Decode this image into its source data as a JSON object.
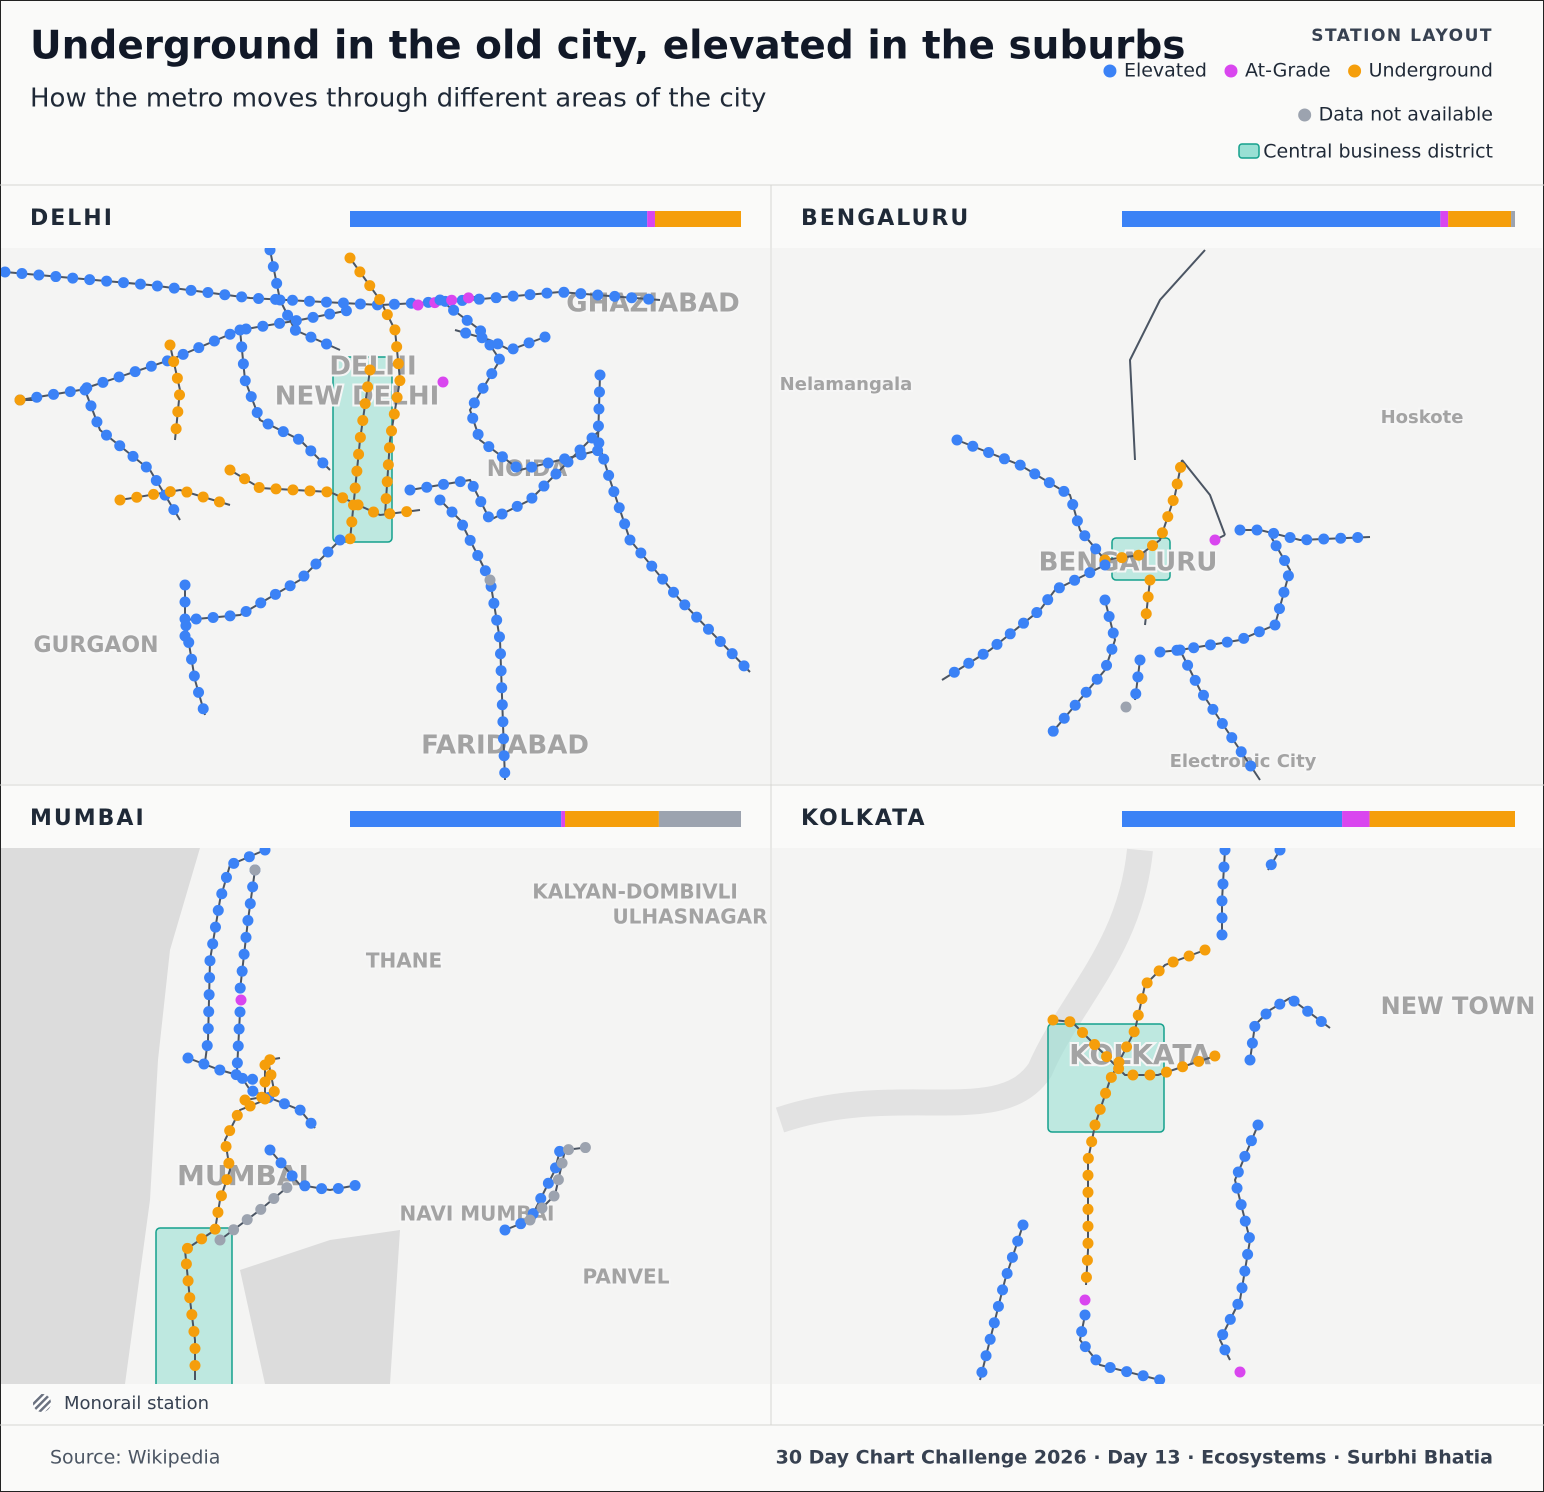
{
  "header": {
    "title": "Underground in the old city, elevated in the suburbs",
    "subtitle": "How the metro moves through different areas of the city"
  },
  "legend": {
    "title": "STATION LAYOUT",
    "items": [
      {
        "label": "Elevated",
        "color": "#3b82f6"
      },
      {
        "label": "At-Grade",
        "color": "#d946ef"
      },
      {
        "label": "Underground",
        "color": "#f59e0b"
      },
      {
        "label": "Data not available",
        "color": "#9ca3af"
      }
    ],
    "cbd_label": "Central business district"
  },
  "panels": [
    {
      "city": "DELHI",
      "shares": [
        76,
        2,
        22,
        0
      ],
      "places": [
        "GHAZIABAD",
        "DELHI",
        "NEW DELHI",
        "NOIDA",
        "GURGAON",
        "FARIDABAD"
      ]
    },
    {
      "city": "BENGALURU",
      "shares": [
        81,
        2,
        16,
        1
      ],
      "places": [
        "Nelamangala",
        "Hoskote",
        "BENGALURU",
        "Electronic City"
      ]
    },
    {
      "city": "MUMBAI",
      "shares": [
        54,
        1,
        24,
        21
      ],
      "places": [
        "KALYAN-DOMBIVLI",
        "ULHASNAGAR",
        "THANE",
        "MUMBAI",
        "NAVI MUMBAI",
        "PANVEL"
      ]
    },
    {
      "city": "KOLKATA",
      "shares": [
        56,
        7,
        37,
        0
      ],
      "places": [
        "NEW TOWN",
        "KOLKATA"
      ]
    }
  ],
  "monorail_label": "Monorail station",
  "footer": {
    "source": "Source: Wikipedia",
    "credit": "30 Day Chart Challenge 2026 · Day 13 · Ecosystems · Surbhi Bhatia"
  }
}
